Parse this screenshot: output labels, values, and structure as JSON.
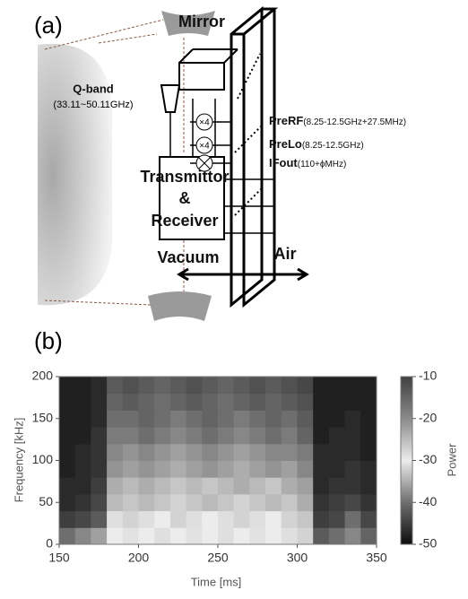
{
  "diagram": {
    "panel_label": "(a)",
    "mirror": "Mirror",
    "band": "Q-band",
    "band_range": "(33.11~50.11GHz)",
    "multiplier_1": "×4",
    "multiplier_2": "×4",
    "prerf": "PreRF",
    "prerf_range": "(8.25-12.5GHz+27.5MHz)",
    "prelo": "PreLo",
    "prelo_range": "(8.25-12.5GHz)",
    "ifout": "IFout",
    "ifout_range": "(110+ϕMHz)",
    "box_line_1": "Transmittor",
    "box_line_2": "&",
    "box_line_3": "Receiver",
    "vacuum": "Vacuum",
    "air": "Air"
  },
  "chart_data": {
    "type": "heatmap",
    "panel_label": "(b)",
    "xlabel": "Time [ms]",
    "ylabel": "Frequency [kHz]",
    "colorbar_label": "Power",
    "x": [
      155,
      165,
      175,
      185,
      195,
      205,
      215,
      225,
      235,
      245,
      255,
      265,
      275,
      285,
      295,
      305,
      315,
      325,
      335,
      345
    ],
    "y": [
      10,
      30,
      50,
      70,
      90,
      110,
      130,
      150,
      170,
      190
    ],
    "z": [
      [
        -40,
        -38,
        -36,
        -30,
        -29,
        -30,
        -31,
        -30,
        -29,
        -30,
        -31,
        -30,
        -29,
        -30,
        -31,
        -32,
        -42,
        -40,
        -38,
        -41
      ],
      [
        -45,
        -44,
        -42,
        -31,
        -32,
        -31,
        -30,
        -32,
        -31,
        -30,
        -31,
        -32,
        -31,
        -30,
        -32,
        -33,
        -45,
        -44,
        -40,
        -44
      ],
      [
        -47,
        -46,
        -44,
        -34,
        -33,
        -34,
        -33,
        -32,
        -33,
        -34,
        -33,
        -32,
        -33,
        -34,
        -33,
        -35,
        -46,
        -45,
        -44,
        -46
      ],
      [
        -47,
        -47,
        -45,
        -35,
        -34,
        -35,
        -34,
        -33,
        -34,
        -33,
        -34,
        -35,
        -34,
        -33,
        -35,
        -36,
        -47,
        -46,
        -46,
        -47
      ],
      [
        -48,
        -47,
        -46,
        -37,
        -36,
        -37,
        -36,
        -35,
        -36,
        -37,
        -36,
        -35,
        -36,
        -37,
        -36,
        -38,
        -47,
        -47,
        -46,
        -47
      ],
      [
        -48,
        -47,
        -46,
        -38,
        -37,
        -38,
        -37,
        -36,
        -37,
        -38,
        -37,
        -36,
        -37,
        -38,
        -38,
        -39,
        -47,
        -47,
        -47,
        -48
      ],
      [
        -48,
        -48,
        -46,
        -39,
        -39,
        -40,
        -39,
        -38,
        -39,
        -40,
        -39,
        -38,
        -39,
        -40,
        -39,
        -41,
        -48,
        -47,
        -47,
        -48
      ],
      [
        -48,
        -48,
        -47,
        -40,
        -40,
        -41,
        -40,
        -39,
        -40,
        -41,
        -40,
        -39,
        -40,
        -41,
        -40,
        -42,
        -48,
        -48,
        -47,
        -48
      ],
      [
        -48,
        -48,
        -47,
        -41,
        -42,
        -41,
        -40,
        -41,
        -42,
        -41,
        -40,
        -41,
        -42,
        -41,
        -42,
        -43,
        -48,
        -48,
        -48,
        -48
      ],
      [
        -48,
        -48,
        -47,
        -42,
        -43,
        -42,
        -41,
        -42,
        -43,
        -42,
        -41,
        -42,
        -43,
        -42,
        -43,
        -44,
        -48,
        -48,
        -48,
        -48
      ]
    ],
    "xlim": [
      150,
      350
    ],
    "xticks": [
      150,
      200,
      250,
      300,
      350
    ],
    "ylim": [
      0,
      200
    ],
    "yticks": [
      0,
      50,
      100,
      150,
      200
    ],
    "zlim": [
      -50,
      -10
    ],
    "zticks": [
      -50,
      -40,
      -30,
      -20,
      -10
    ],
    "colormap": [
      "#0d0d0d",
      "#6e6e6e",
      "#ececec",
      "#8a8a8a",
      "#404040"
    ]
  }
}
